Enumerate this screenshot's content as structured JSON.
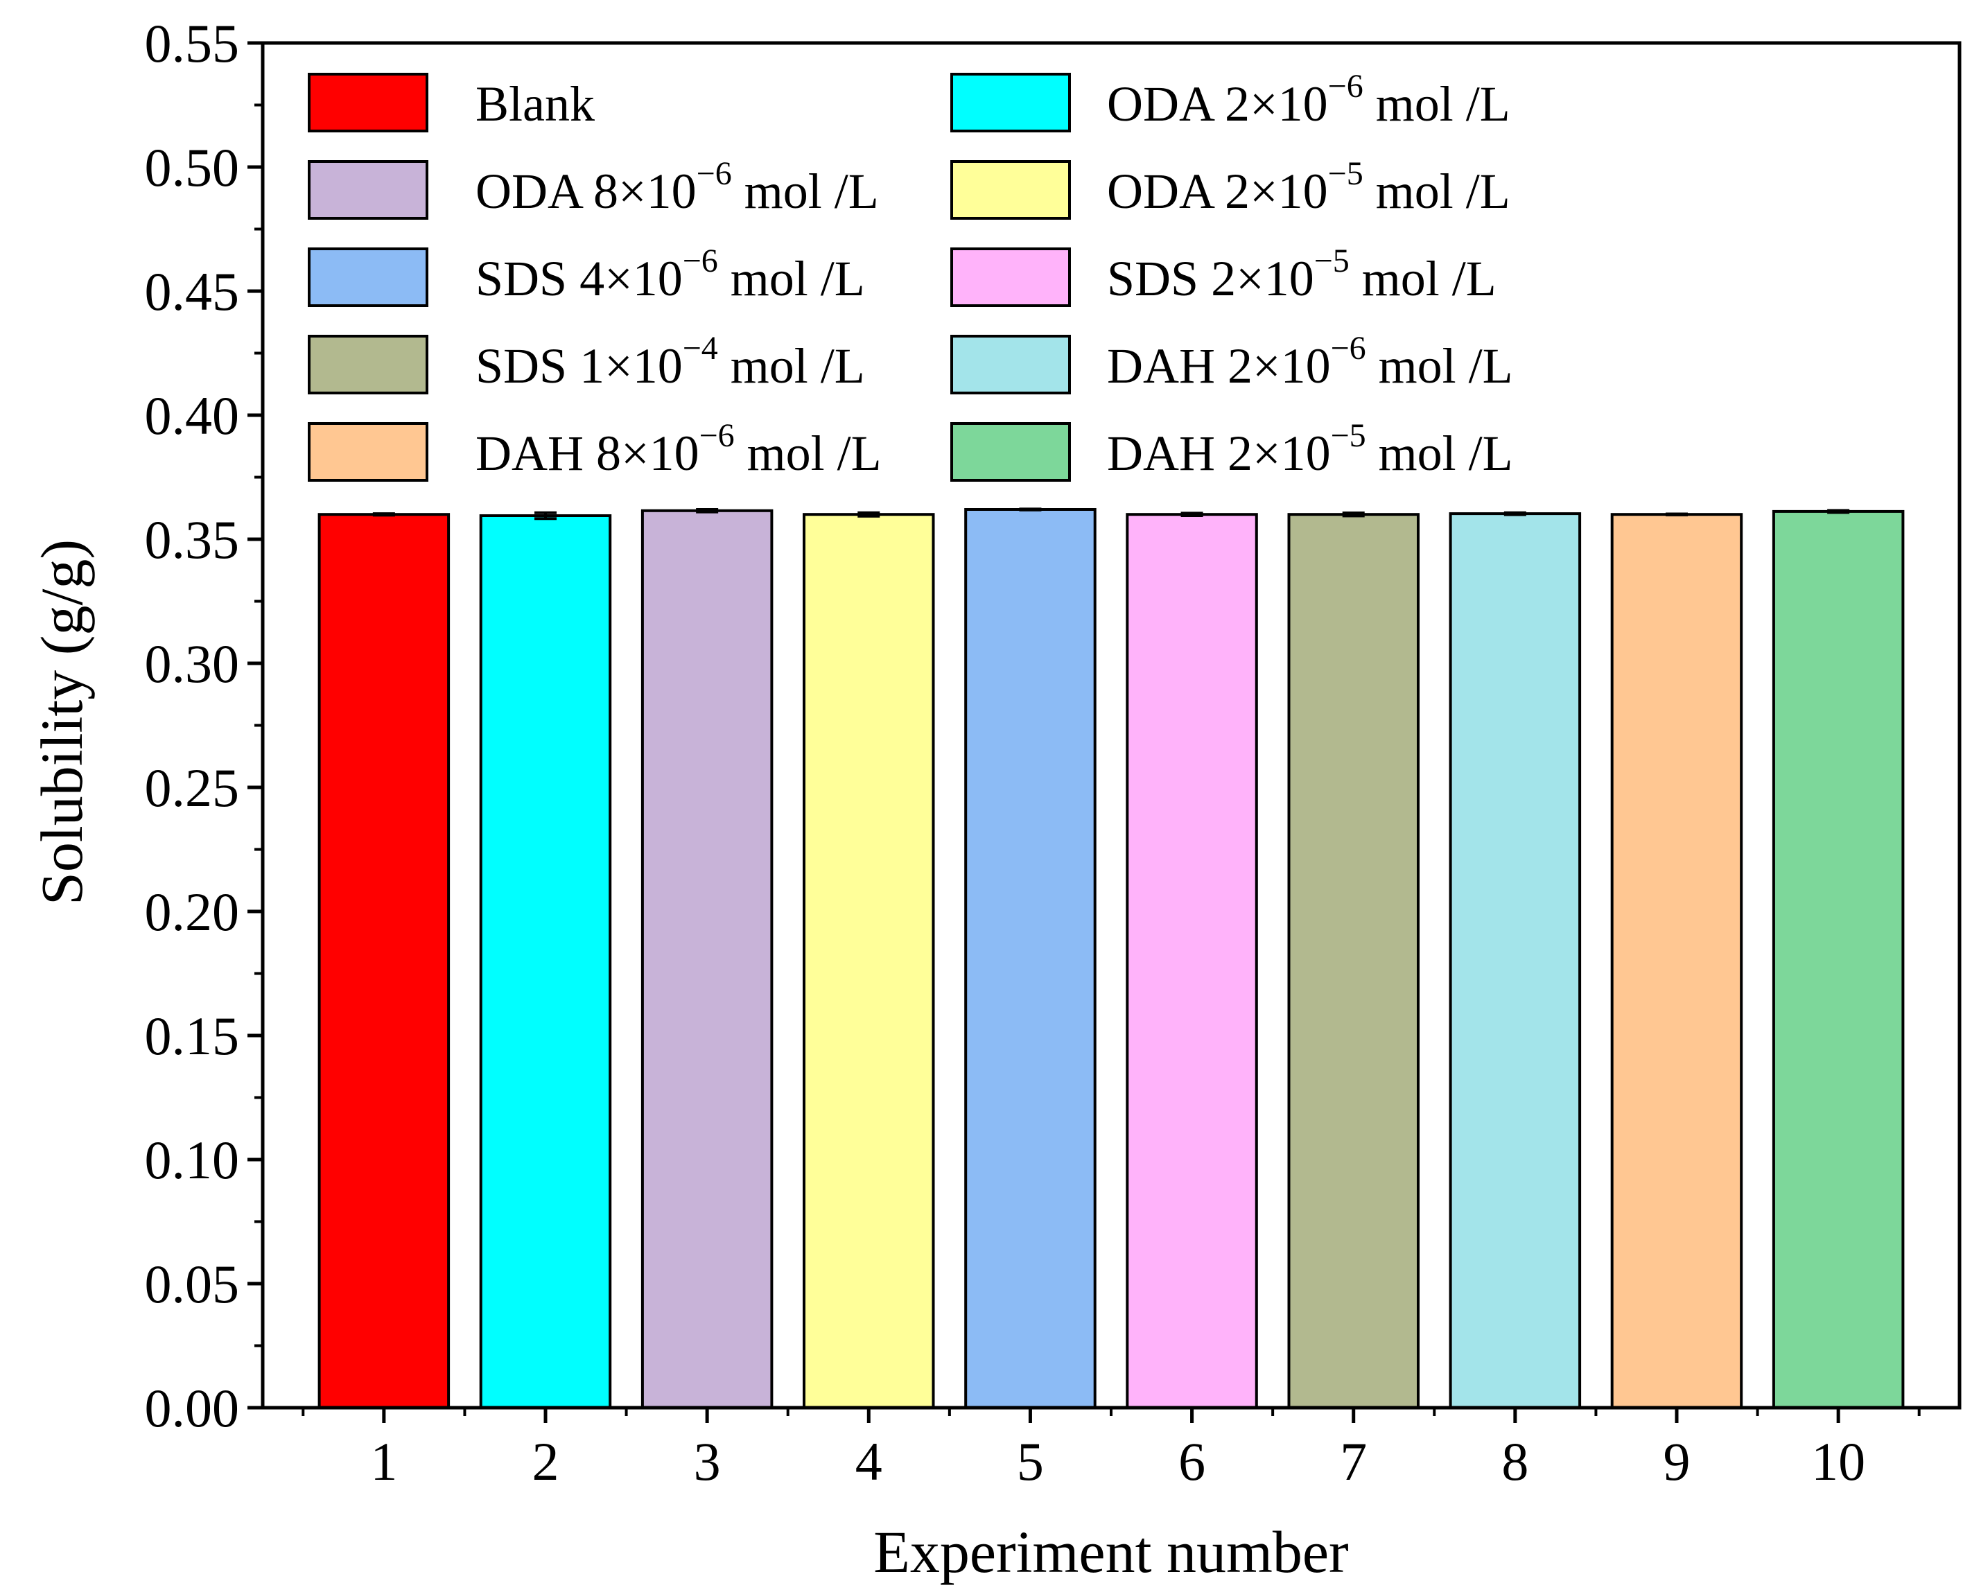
{
  "chart_data": {
    "type": "bar",
    "title": "",
    "xlabel": "Experiment number",
    "ylabel": "Solubility (g/g)",
    "ylim": [
      0,
      0.55
    ],
    "yticks": [
      "0.00",
      "0.05",
      "0.10",
      "0.15",
      "0.20",
      "0.25",
      "0.30",
      "0.35",
      "0.40",
      "0.45",
      "0.50",
      "0.55"
    ],
    "yminor_step": 0.025,
    "categories": [
      "1",
      "2",
      "3",
      "4",
      "5",
      "6",
      "7",
      "8",
      "9",
      "10"
    ],
    "values": [
      0.36,
      0.3595,
      0.3615,
      0.36,
      0.362,
      0.36,
      0.36,
      0.3603,
      0.36,
      0.3612
    ],
    "errors": [
      0.0003,
      0.0012,
      0.0005,
      0.0007,
      0.0002,
      0.0005,
      0.0006,
      0.0004,
      0.0002,
      0.0004
    ],
    "colors": [
      "#FF0000",
      "#00FFFF",
      "#C8B3D8",
      "#FFFF99",
      "#8CBBF5",
      "#FFB3FA",
      "#B2B98F",
      "#A3E4EA",
      "#FFC792",
      "#7DD79A"
    ],
    "legend": [
      {
        "label": "Blank",
        "color": "#FF0000",
        "sup": "",
        "tail": ""
      },
      {
        "label": "ODA 2×10",
        "color": "#00FFFF",
        "sup": "−6",
        "tail": " mol /L"
      },
      {
        "label": "ODA 8×10",
        "color": "#C8B3D8",
        "sup": "−6",
        "tail": " mol /L"
      },
      {
        "label": "ODA 2×10",
        "color": "#FFFF99",
        "sup": "−5",
        "tail": " mol /L"
      },
      {
        "label": "SDS 4×10",
        "color": "#8CBBF5",
        "sup": "−6",
        "tail": " mol /L"
      },
      {
        "label": "SDS 2×10",
        "color": "#FFB3FA",
        "sup": "−5",
        "tail": " mol /L"
      },
      {
        "label": "SDS 1×10",
        "color": "#B2B98F",
        "sup": "−4",
        "tail": " mol /L"
      },
      {
        "label": "DAH 2×10",
        "color": "#A3E4EA",
        "sup": "−6",
        "tail": " mol /L"
      },
      {
        "label": "DAH 8×10",
        "color": "#FFC792",
        "sup": "−6",
        "tail": " mol /L"
      },
      {
        "label": "DAH 2×10",
        "color": "#7DD79A",
        "sup": "−5",
        "tail": " mol /L"
      }
    ],
    "legend_position": "top",
    "grid": false
  }
}
